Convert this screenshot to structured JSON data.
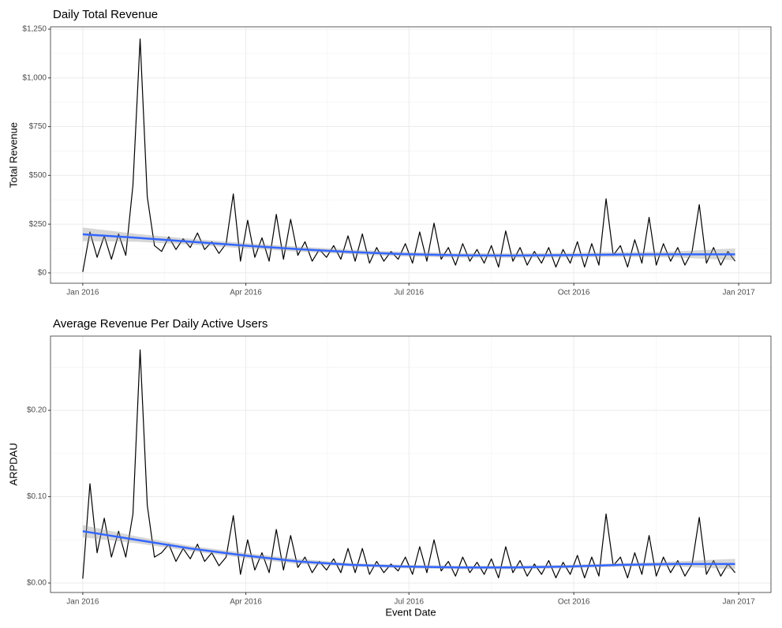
{
  "chart_data": [
    {
      "type": "line",
      "title": "Daily Total Revenue",
      "ylabel": "Total Revenue",
      "x": [
        0,
        4,
        8,
        12,
        16,
        20,
        24,
        28,
        32,
        36,
        40,
        44,
        48,
        52,
        56,
        60,
        64,
        68,
        72,
        76,
        80,
        84,
        88,
        92,
        96,
        100,
        104,
        108,
        112,
        116,
        120,
        124,
        128,
        132,
        136,
        140,
        144,
        148,
        152,
        156,
        160,
        164,
        168,
        172,
        176,
        180,
        184,
        188,
        192,
        196,
        200,
        204,
        208,
        212,
        216,
        220,
        224,
        228,
        232,
        236,
        240,
        244,
        248,
        252,
        256,
        260,
        264,
        268,
        272,
        276,
        280,
        284,
        288,
        292,
        296,
        300,
        304,
        308,
        312,
        316,
        320,
        324,
        328,
        332,
        336,
        340,
        344,
        348,
        352,
        356,
        360,
        364
      ],
      "series": [
        {
          "color": "#000000",
          "values": [
            5,
            210,
            80,
            190,
            70,
            200,
            90,
            450,
            1200,
            390,
            140,
            110,
            185,
            120,
            175,
            130,
            205,
            120,
            160,
            100,
            150,
            405,
            60,
            270,
            80,
            180,
            60,
            300,
            70,
            275,
            90,
            160,
            60,
            120,
            80,
            140,
            70,
            190,
            60,
            200,
            50,
            130,
            60,
            110,
            70,
            150,
            50,
            210,
            60,
            255,
            70,
            130,
            40,
            150,
            60,
            120,
            50,
            140,
            30,
            215,
            60,
            130,
            40,
            110,
            50,
            130,
            30,
            120,
            50,
            160,
            30,
            150,
            40,
            380,
            90,
            140,
            30,
            170,
            50,
            285,
            40,
            150,
            60,
            130,
            40,
            110,
            350,
            50,
            130,
            40,
            110,
            60
          ]
        }
      ],
      "smooth": {
        "color": "#3366ff",
        "band_color": "#999999",
        "x": [
          0,
          30,
          60,
          90,
          120,
          150,
          180,
          210,
          240,
          270,
          300,
          330,
          364
        ],
        "values": [
          198,
          180,
          160,
          140,
          122,
          107,
          96,
          90,
          89,
          91,
          94,
          95,
          95
        ],
        "lower": [
          163,
          160,
          145,
          126,
          109,
          95,
          84,
          78,
          77,
          79,
          81,
          80,
          65
        ],
        "upper": [
          233,
          200,
          175,
          154,
          135,
          119,
          108,
          102,
          101,
          103,
          107,
          110,
          125
        ]
      },
      "xlim": [
        -18,
        384
      ],
      "xticks": [
        {
          "value": 0,
          "label": "Jan 2016"
        },
        {
          "value": 91,
          "label": "Apr 2016"
        },
        {
          "value": 182,
          "label": "Jul 2016"
        },
        {
          "value": 274,
          "label": "Oct 2016"
        },
        {
          "value": 366,
          "label": "Jan 2017"
        }
      ],
      "xminor": [
        45.5,
        136.5,
        228,
        320
      ],
      "ylim": [
        -53,
        1262
      ],
      "yticks": [
        {
          "value": 0,
          "label": "$0"
        },
        {
          "value": 250,
          "label": "$250"
        },
        {
          "value": 500,
          "label": "$500"
        },
        {
          "value": 750,
          "label": "$750"
        },
        {
          "value": 1000,
          "label": "$1,000"
        },
        {
          "value": 1250,
          "label": "$1,250"
        }
      ],
      "yminor": [
        125,
        375,
        625,
        875,
        1125
      ],
      "grid": true
    },
    {
      "type": "line",
      "title": "Average Revenue Per Daily Active Users",
      "ylabel": "ARPDAU",
      "xlabel": "Event Date",
      "x": [
        0,
        4,
        8,
        12,
        16,
        20,
        24,
        28,
        32,
        36,
        40,
        44,
        48,
        52,
        56,
        60,
        64,
        68,
        72,
        76,
        80,
        84,
        88,
        92,
        96,
        100,
        104,
        108,
        112,
        116,
        120,
        124,
        128,
        132,
        136,
        140,
        144,
        148,
        152,
        156,
        160,
        164,
        168,
        172,
        176,
        180,
        184,
        188,
        192,
        196,
        200,
        204,
        208,
        212,
        216,
        220,
        224,
        228,
        232,
        236,
        240,
        244,
        248,
        252,
        256,
        260,
        264,
        268,
        272,
        276,
        280,
        284,
        288,
        292,
        296,
        300,
        304,
        308,
        312,
        316,
        320,
        324,
        328,
        332,
        336,
        340,
        344,
        348,
        352,
        356,
        360,
        364
      ],
      "series": [
        {
          "color": "#000000",
          "values": [
            0.005,
            0.115,
            0.035,
            0.075,
            0.03,
            0.06,
            0.03,
            0.08,
            0.27,
            0.09,
            0.03,
            0.035,
            0.045,
            0.025,
            0.04,
            0.028,
            0.045,
            0.025,
            0.035,
            0.02,
            0.03,
            0.078,
            0.01,
            0.05,
            0.015,
            0.035,
            0.012,
            0.062,
            0.015,
            0.055,
            0.018,
            0.03,
            0.012,
            0.025,
            0.015,
            0.028,
            0.012,
            0.04,
            0.012,
            0.04,
            0.01,
            0.025,
            0.012,
            0.022,
            0.014,
            0.03,
            0.01,
            0.042,
            0.012,
            0.05,
            0.014,
            0.025,
            0.008,
            0.03,
            0.012,
            0.024,
            0.01,
            0.028,
            0.006,
            0.042,
            0.012,
            0.026,
            0.008,
            0.022,
            0.01,
            0.026,
            0.006,
            0.024,
            0.01,
            0.032,
            0.006,
            0.03,
            0.008,
            0.08,
            0.02,
            0.03,
            0.006,
            0.035,
            0.01,
            0.055,
            0.008,
            0.03,
            0.012,
            0.026,
            0.008,
            0.022,
            0.076,
            0.01,
            0.026,
            0.008,
            0.022,
            0.012
          ]
        }
      ],
      "smooth": {
        "color": "#3366ff",
        "band_color": "#999999",
        "x": [
          0,
          30,
          60,
          90,
          120,
          150,
          180,
          210,
          240,
          270,
          300,
          330,
          364
        ],
        "values": [
          0.06,
          0.05,
          0.04,
          0.032,
          0.025,
          0.021,
          0.019,
          0.018,
          0.018,
          0.019,
          0.021,
          0.022,
          0.022
        ],
        "lower": [
          0.053,
          0.046,
          0.037,
          0.029,
          0.022,
          0.019,
          0.017,
          0.016,
          0.016,
          0.017,
          0.019,
          0.019,
          0.016
        ],
        "upper": [
          0.067,
          0.054,
          0.043,
          0.035,
          0.028,
          0.023,
          0.021,
          0.02,
          0.02,
          0.021,
          0.023,
          0.025,
          0.028
        ]
      },
      "xlim": [
        -18,
        384
      ],
      "xticks": [
        {
          "value": 0,
          "label": "Jan 2016"
        },
        {
          "value": 91,
          "label": "Apr 2016"
        },
        {
          "value": 182,
          "label": "Jul 2016"
        },
        {
          "value": 274,
          "label": "Oct 2016"
        },
        {
          "value": 366,
          "label": "Jan 2017"
        }
      ],
      "xminor": [
        45.5,
        136.5,
        228,
        320
      ],
      "ylim": [
        -0.011,
        0.286
      ],
      "yticks": [
        {
          "value": 0,
          "label": "$0.00"
        },
        {
          "value": 0.1,
          "label": "$0.10"
        },
        {
          "value": 0.2,
          "label": "$0.20"
        }
      ],
      "yminor": [
        0.05,
        0.15,
        0.25
      ],
      "grid": true
    }
  ]
}
